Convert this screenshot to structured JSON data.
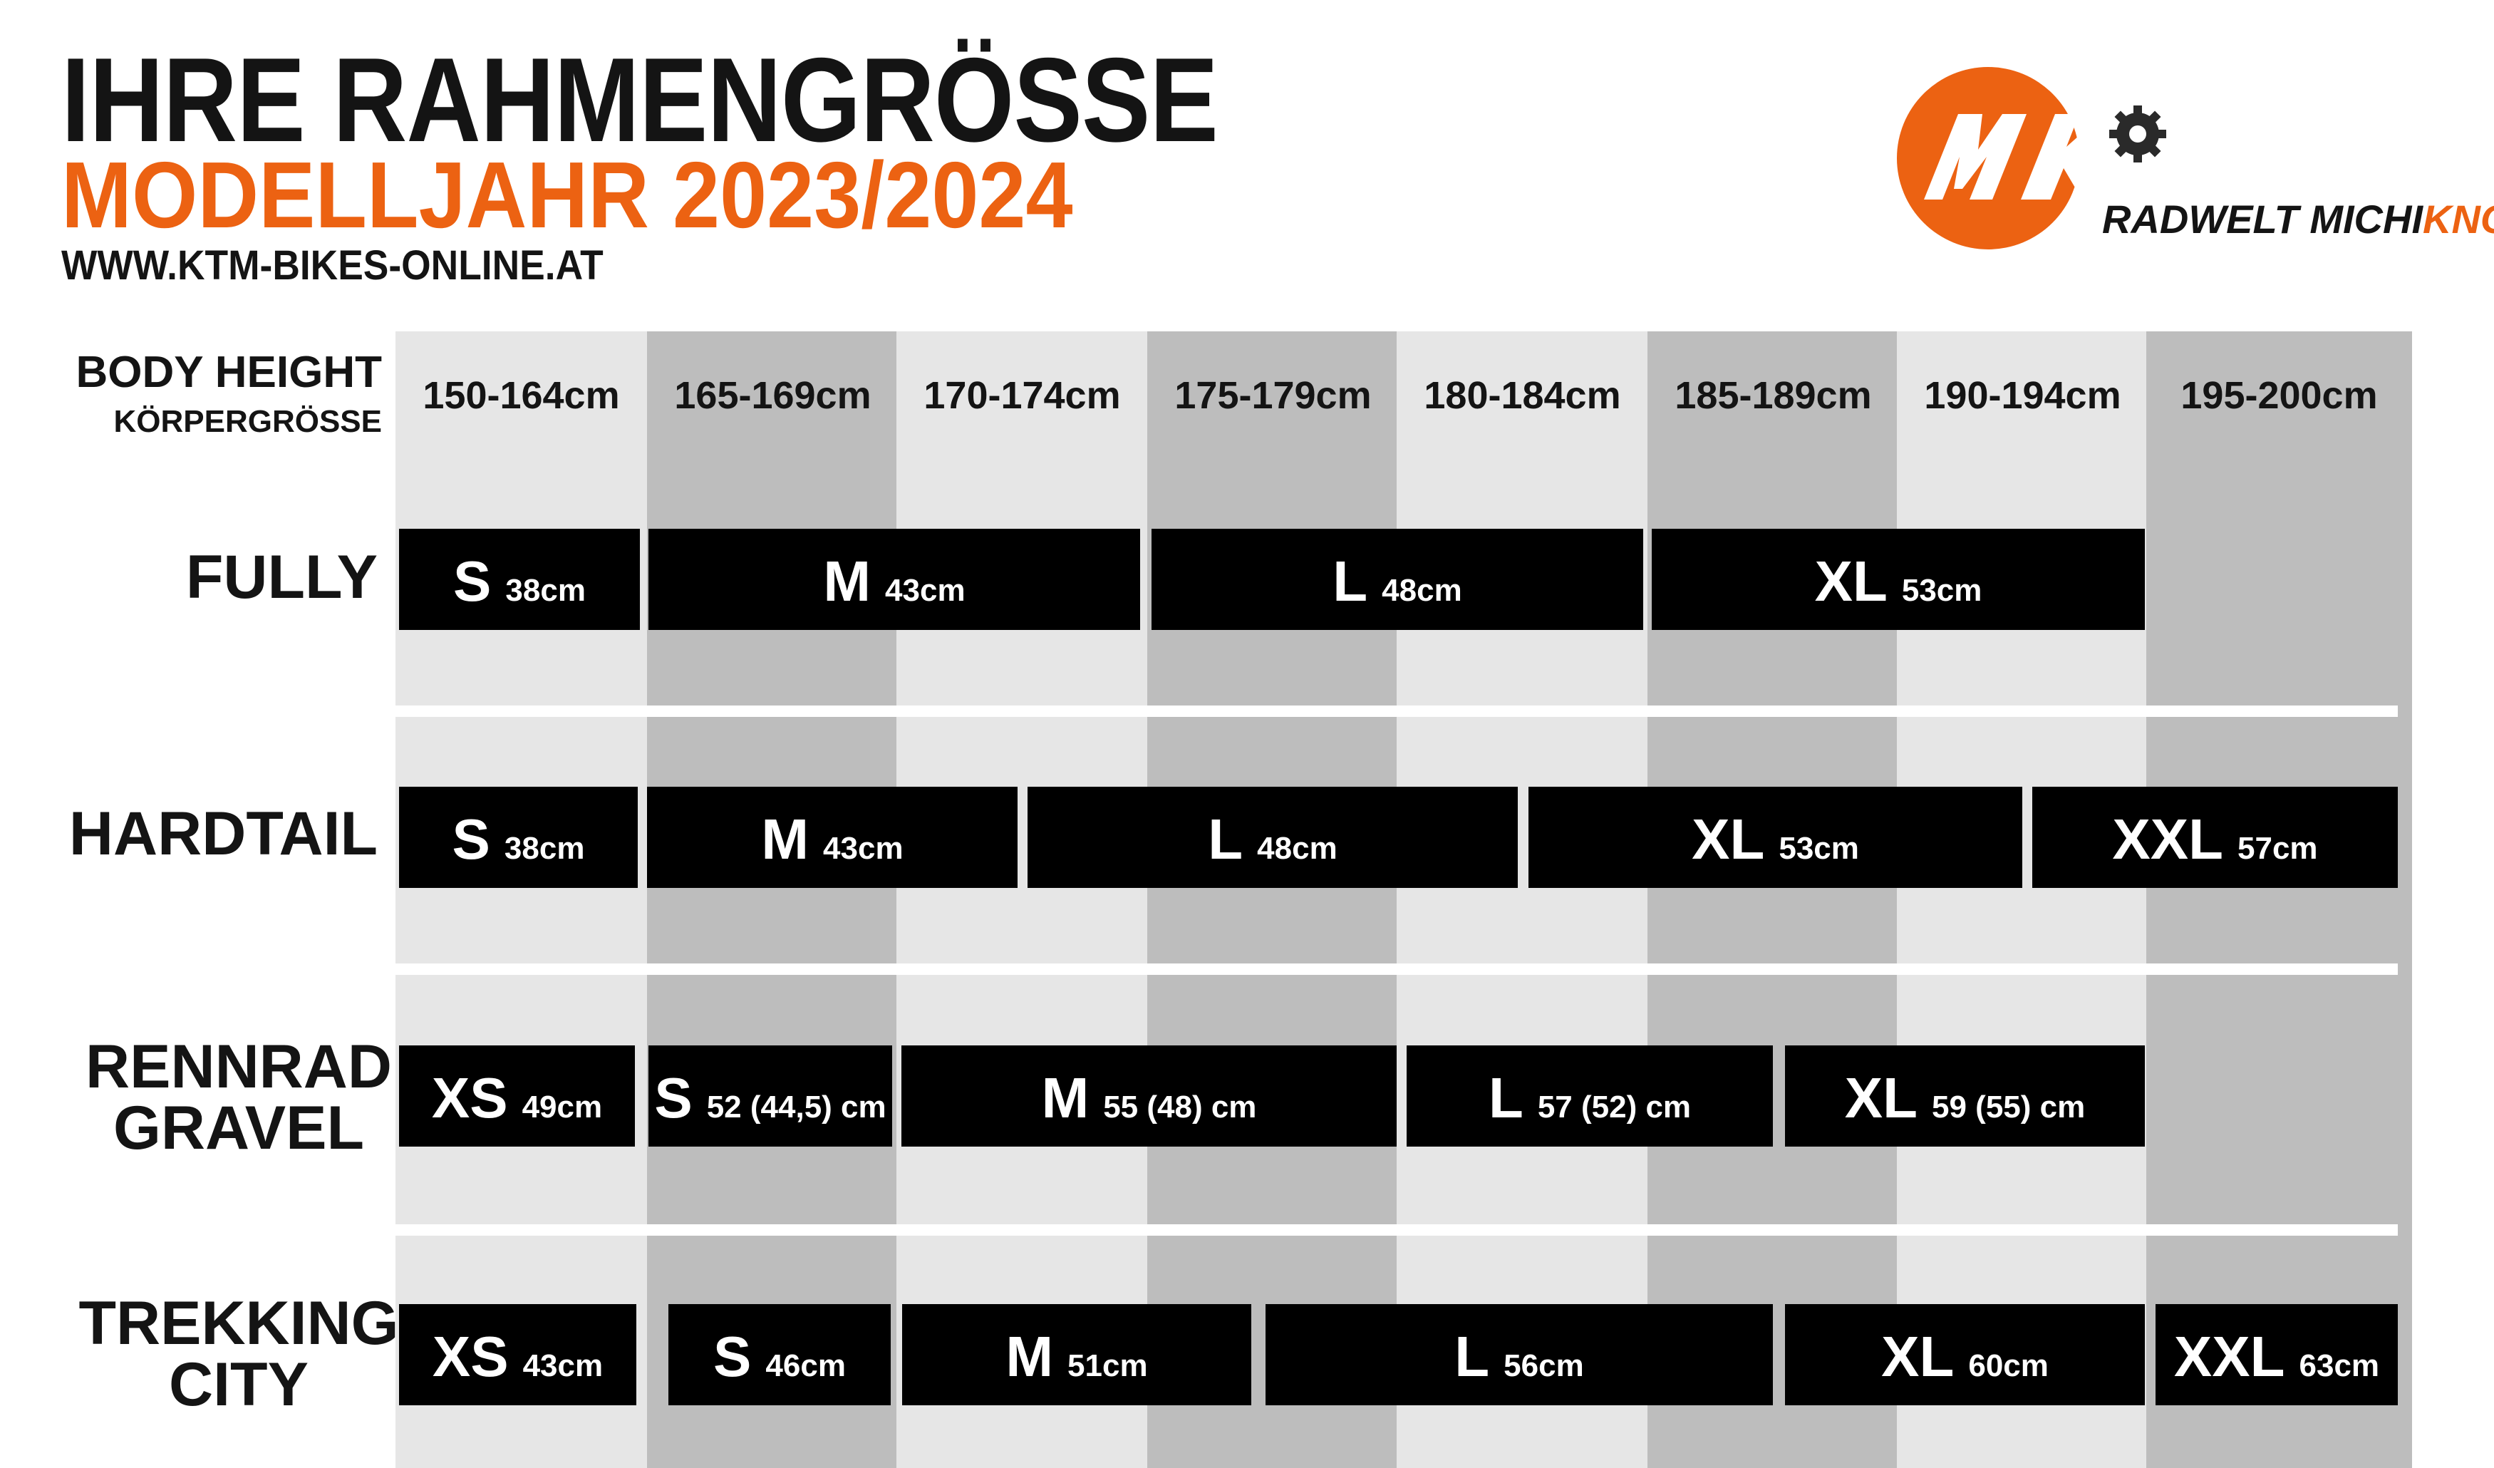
{
  "header": {
    "title": "IHRE RAHMENGRÖSSE",
    "subtitle": "MODELLJAHR 2023/2024",
    "website": "WWW.KTM-BIKES-ONLINE.AT"
  },
  "logo": {
    "monogram": "MK",
    "text_part1": "RADWELT MICHI",
    "text_part2": "KNOPF"
  },
  "colors": {
    "accent": "#EC6212",
    "dark": "#141414",
    "column_light": "#E6E6E6",
    "column_dark": "#BDBDBD",
    "bar": "#000000"
  },
  "body_height": {
    "label": "BODY HEIGHT",
    "sublabel": "KÖRPERGRÖSSE",
    "ranges": [
      "150-164cm",
      "165-169cm",
      "170-174cm",
      "175-179cm",
      "180-184cm",
      "185-189cm",
      "190-194cm",
      "195-200cm"
    ]
  },
  "categories": [
    {
      "label": [
        "FULLY"
      ],
      "sizes": [
        {
          "size": "S",
          "frame": "38cm"
        },
        {
          "size": "M",
          "frame": "43cm"
        },
        {
          "size": "L",
          "frame": "48cm"
        },
        {
          "size": "XL",
          "frame": "53cm"
        }
      ]
    },
    {
      "label": [
        "HARDTAIL"
      ],
      "sizes": [
        {
          "size": "S",
          "frame": "38cm"
        },
        {
          "size": "M",
          "frame": "43cm"
        },
        {
          "size": "L",
          "frame": "48cm"
        },
        {
          "size": "XL",
          "frame": "53cm"
        },
        {
          "size": "XXL",
          "frame": "57cm"
        }
      ]
    },
    {
      "label": [
        "RENNRAD",
        "GRAVEL"
      ],
      "sizes": [
        {
          "size": "XS",
          "frame": "49cm"
        },
        {
          "size": "S",
          "frame": "52 (44,5) cm"
        },
        {
          "size": "M",
          "frame": "55 (48) cm"
        },
        {
          "size": "L",
          "frame": "57 (52) cm"
        },
        {
          "size": "XL",
          "frame": "59 (55) cm"
        }
      ]
    },
    {
      "label": [
        "TREKKING",
        "CITY"
      ],
      "sizes": [
        {
          "size": "XS",
          "frame": "43cm"
        },
        {
          "size": "S",
          "frame": "46cm"
        },
        {
          "size": "M",
          "frame": "51cm"
        },
        {
          "size": "L",
          "frame": "56cm"
        },
        {
          "size": "XL",
          "frame": "60cm"
        },
        {
          "size": "XXL",
          "frame": "63cm"
        }
      ]
    }
  ]
}
